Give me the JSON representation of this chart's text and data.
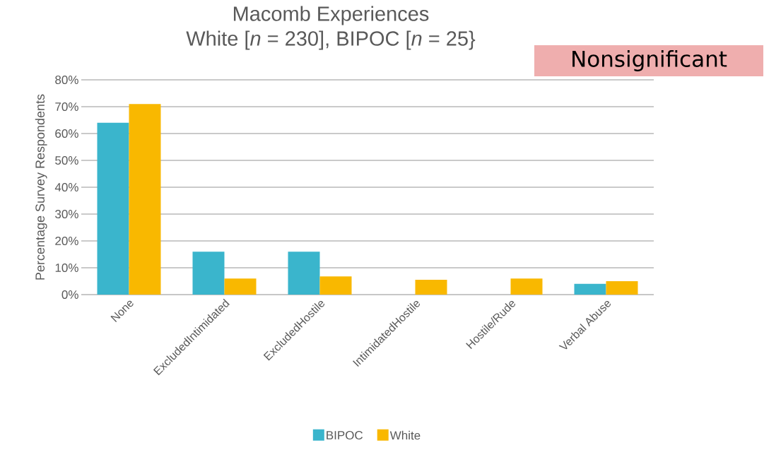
{
  "chart_data": {
    "type": "bar",
    "title": "Macomb Experiences",
    "subtitle": "White [*n* = 230], BIPOC [*n* = 25}",
    "ylabel": "Percentage Survey Respondents",
    "categories": [
      "None",
      "ExcludedIntimidated",
      "ExcludedHostile",
      "IntimidatedHostile",
      "Hostile/Rude",
      "Verbal Abuse"
    ],
    "series": [
      {
        "name": "BIPOC",
        "color": "#3ab5cc",
        "values": [
          64,
          16,
          16,
          0,
          0,
          4
        ]
      },
      {
        "name": "White",
        "color": "#f9b800",
        "values": [
          71,
          6,
          6.8,
          5.5,
          6,
          5
        ]
      }
    ],
    "ylim": [
      0,
      80
    ],
    "yticks": [
      {
        "value": 0,
        "label": "0%"
      },
      {
        "value": 10,
        "label": "10%"
      },
      {
        "value": 20,
        "label": "20%"
      },
      {
        "value": 30,
        "label": "30%"
      },
      {
        "value": 40,
        "label": "40%"
      },
      {
        "value": 50,
        "label": "50%"
      },
      {
        "value": 60,
        "label": "60%"
      },
      {
        "value": 70,
        "label": "70%"
      },
      {
        "value": 80,
        "label": "80%"
      }
    ],
    "grid": "y",
    "legend": "bottom",
    "annotations": [
      "Nonsignificant"
    ]
  }
}
